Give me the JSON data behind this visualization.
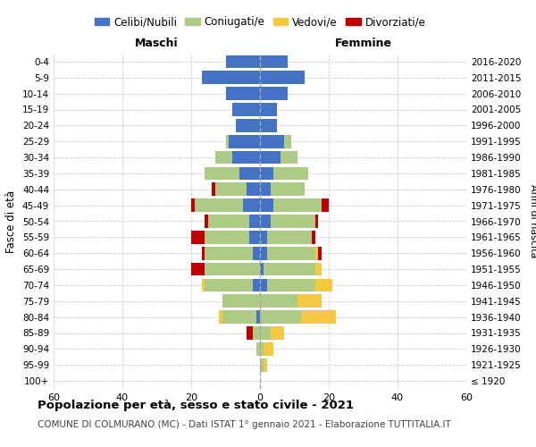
{
  "age_groups": [
    "100+",
    "95-99",
    "90-94",
    "85-89",
    "80-84",
    "75-79",
    "70-74",
    "65-69",
    "60-64",
    "55-59",
    "50-54",
    "45-49",
    "40-44",
    "35-39",
    "30-34",
    "25-29",
    "20-24",
    "15-19",
    "10-14",
    "5-9",
    "0-4"
  ],
  "maschi": {
    "celibi": [
      0,
      0,
      0,
      0,
      1,
      0,
      2,
      0,
      2,
      3,
      3,
      5,
      4,
      6,
      8,
      9,
      7,
      8,
      10,
      17,
      10
    ],
    "coniugati": [
      0,
      0,
      1,
      2,
      10,
      11,
      14,
      16,
      14,
      13,
      12,
      14,
      9,
      10,
      5,
      1,
      0,
      0,
      0,
      0,
      0
    ],
    "vedovi": [
      0,
      0,
      0,
      0,
      1,
      0,
      1,
      0,
      0,
      0,
      0,
      0,
      0,
      0,
      0,
      0,
      0,
      0,
      0,
      0,
      0
    ],
    "divorziati": [
      0,
      0,
      0,
      2,
      0,
      0,
      0,
      4,
      1,
      4,
      1,
      1,
      1,
      0,
      0,
      0,
      0,
      0,
      0,
      0,
      0
    ]
  },
  "femmine": {
    "nubili": [
      0,
      0,
      0,
      0,
      0,
      0,
      2,
      1,
      2,
      2,
      3,
      4,
      3,
      4,
      6,
      7,
      5,
      5,
      8,
      13,
      8
    ],
    "coniugate": [
      0,
      1,
      1,
      3,
      12,
      11,
      14,
      15,
      14,
      13,
      13,
      14,
      10,
      10,
      5,
      2,
      0,
      0,
      0,
      0,
      0
    ],
    "vedove": [
      0,
      1,
      3,
      4,
      10,
      7,
      5,
      2,
      1,
      0,
      0,
      0,
      0,
      0,
      0,
      0,
      0,
      0,
      0,
      0,
      0
    ],
    "divorziate": [
      0,
      0,
      0,
      0,
      0,
      0,
      0,
      0,
      1,
      1,
      1,
      2,
      0,
      0,
      0,
      0,
      0,
      0,
      0,
      0,
      0
    ]
  },
  "colors": {
    "celibi": "#4472C4",
    "coniugati": "#AECB85",
    "vedovi": "#F5C842",
    "divorziati": "#C00000"
  },
  "title": "Popolazione per età, sesso e stato civile - 2021",
  "subtitle": "COMUNE DI COLMURANO (MC) - Dati ISTAT 1° gennaio 2021 - Elaborazione TUTTITALIA.IT",
  "xlabel_maschi": "Maschi",
  "xlabel_femmine": "Femmine",
  "ylabel": "Fasce di età",
  "ylabel_right": "Anni di nascita",
  "right_labels": [
    "≤ 1920",
    "1921-1925",
    "1926-1930",
    "1931-1935",
    "1936-1940",
    "1941-1945",
    "1946-1950",
    "1951-1955",
    "1956-1960",
    "1961-1965",
    "1966-1970",
    "1971-1975",
    "1976-1980",
    "1981-1985",
    "1986-1990",
    "1991-1995",
    "1996-2000",
    "2001-2005",
    "2006-2010",
    "2011-2015",
    "2016-2020"
  ],
  "xlim": 60,
  "bg_color": "#FFFFFF",
  "grid_color": "#CCCCCC"
}
